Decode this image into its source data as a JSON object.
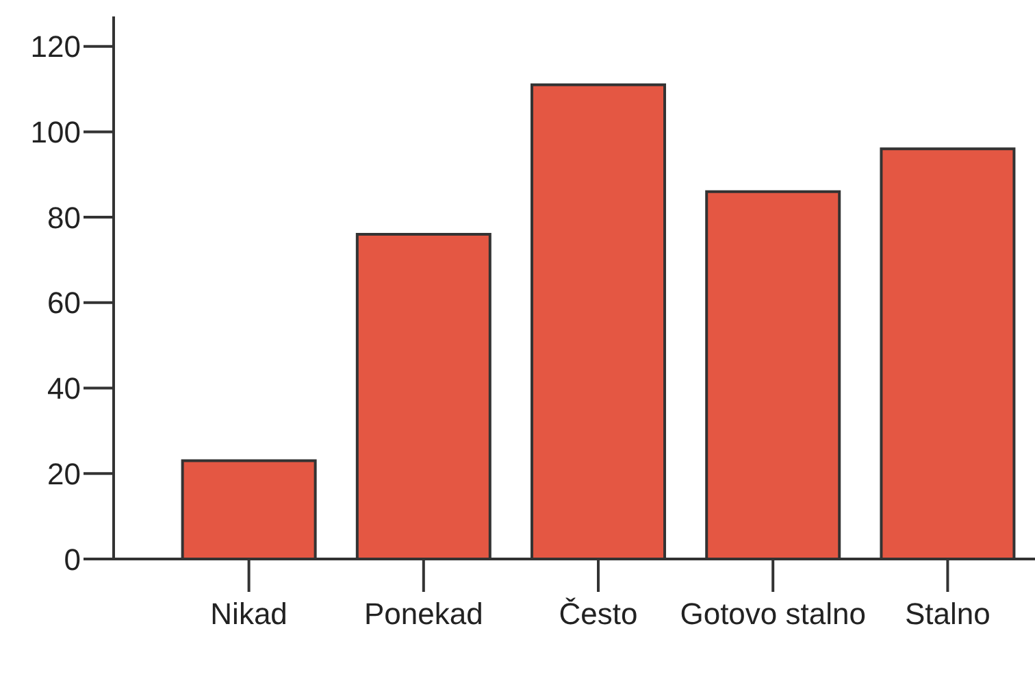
{
  "chart_data": {
    "type": "bar",
    "categories": [
      "Nikad",
      "Ponekad",
      "Često",
      "Gotovo stalno",
      "Stalno"
    ],
    "values": [
      23,
      76,
      111,
      86,
      96
    ],
    "color": "#e45743",
    "ylim": [
      0,
      127
    ],
    "yticks": [
      0,
      20,
      40,
      60,
      80,
      100,
      120
    ],
    "grid": false,
    "legend": false
  }
}
